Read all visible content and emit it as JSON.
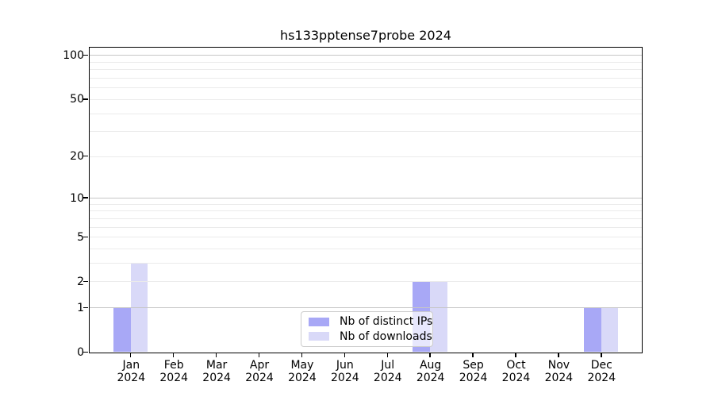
{
  "title": "hs133pptense7probe 2024",
  "chart_data": {
    "type": "bar",
    "title": "hs133pptense7probe 2024",
    "scale": "log1p",
    "grid": true,
    "categories": [
      "Jan",
      "Feb",
      "Mar",
      "Apr",
      "May",
      "Jun",
      "Jul",
      "Aug",
      "Sep",
      "Oct",
      "Nov",
      "Dec"
    ],
    "year": "2024",
    "series": [
      {
        "name": "Nb of distinct IPs",
        "color": "#a8a8f6",
        "values": [
          1,
          0,
          0,
          0,
          0,
          0,
          0,
          2,
          0,
          0,
          0,
          1
        ]
      },
      {
        "name": "Nb of downloads",
        "color": "#d9d9f8",
        "values": [
          3,
          0,
          0,
          0,
          0,
          0,
          0,
          2,
          0,
          0,
          0,
          1
        ]
      }
    ],
    "xlabel": "",
    "ylabel": "",
    "ylim": [
      0,
      113
    ],
    "y_tick_labels": [
      "0",
      "1",
      "2",
      "5",
      "10",
      "20",
      "50",
      "100"
    ],
    "y_tick_values": [
      0,
      1,
      2,
      5,
      10,
      20,
      50,
      100
    ],
    "major_gridline_values": [
      1,
      10,
      100
    ],
    "minor_gridline_values": [
      2,
      3,
      4,
      5,
      6,
      7,
      8,
      9,
      20,
      30,
      40,
      50,
      60,
      70,
      80,
      90
    ],
    "legend_position": "lower center"
  },
  "colors": {
    "bar_distinct_ips": "#a8a8f6",
    "bar_downloads": "#d9d9f8",
    "major_grid": "#c6c6c6",
    "minor_grid": "#ebebeb",
    "spine": "#000000",
    "legend_border": "#cccccc"
  }
}
